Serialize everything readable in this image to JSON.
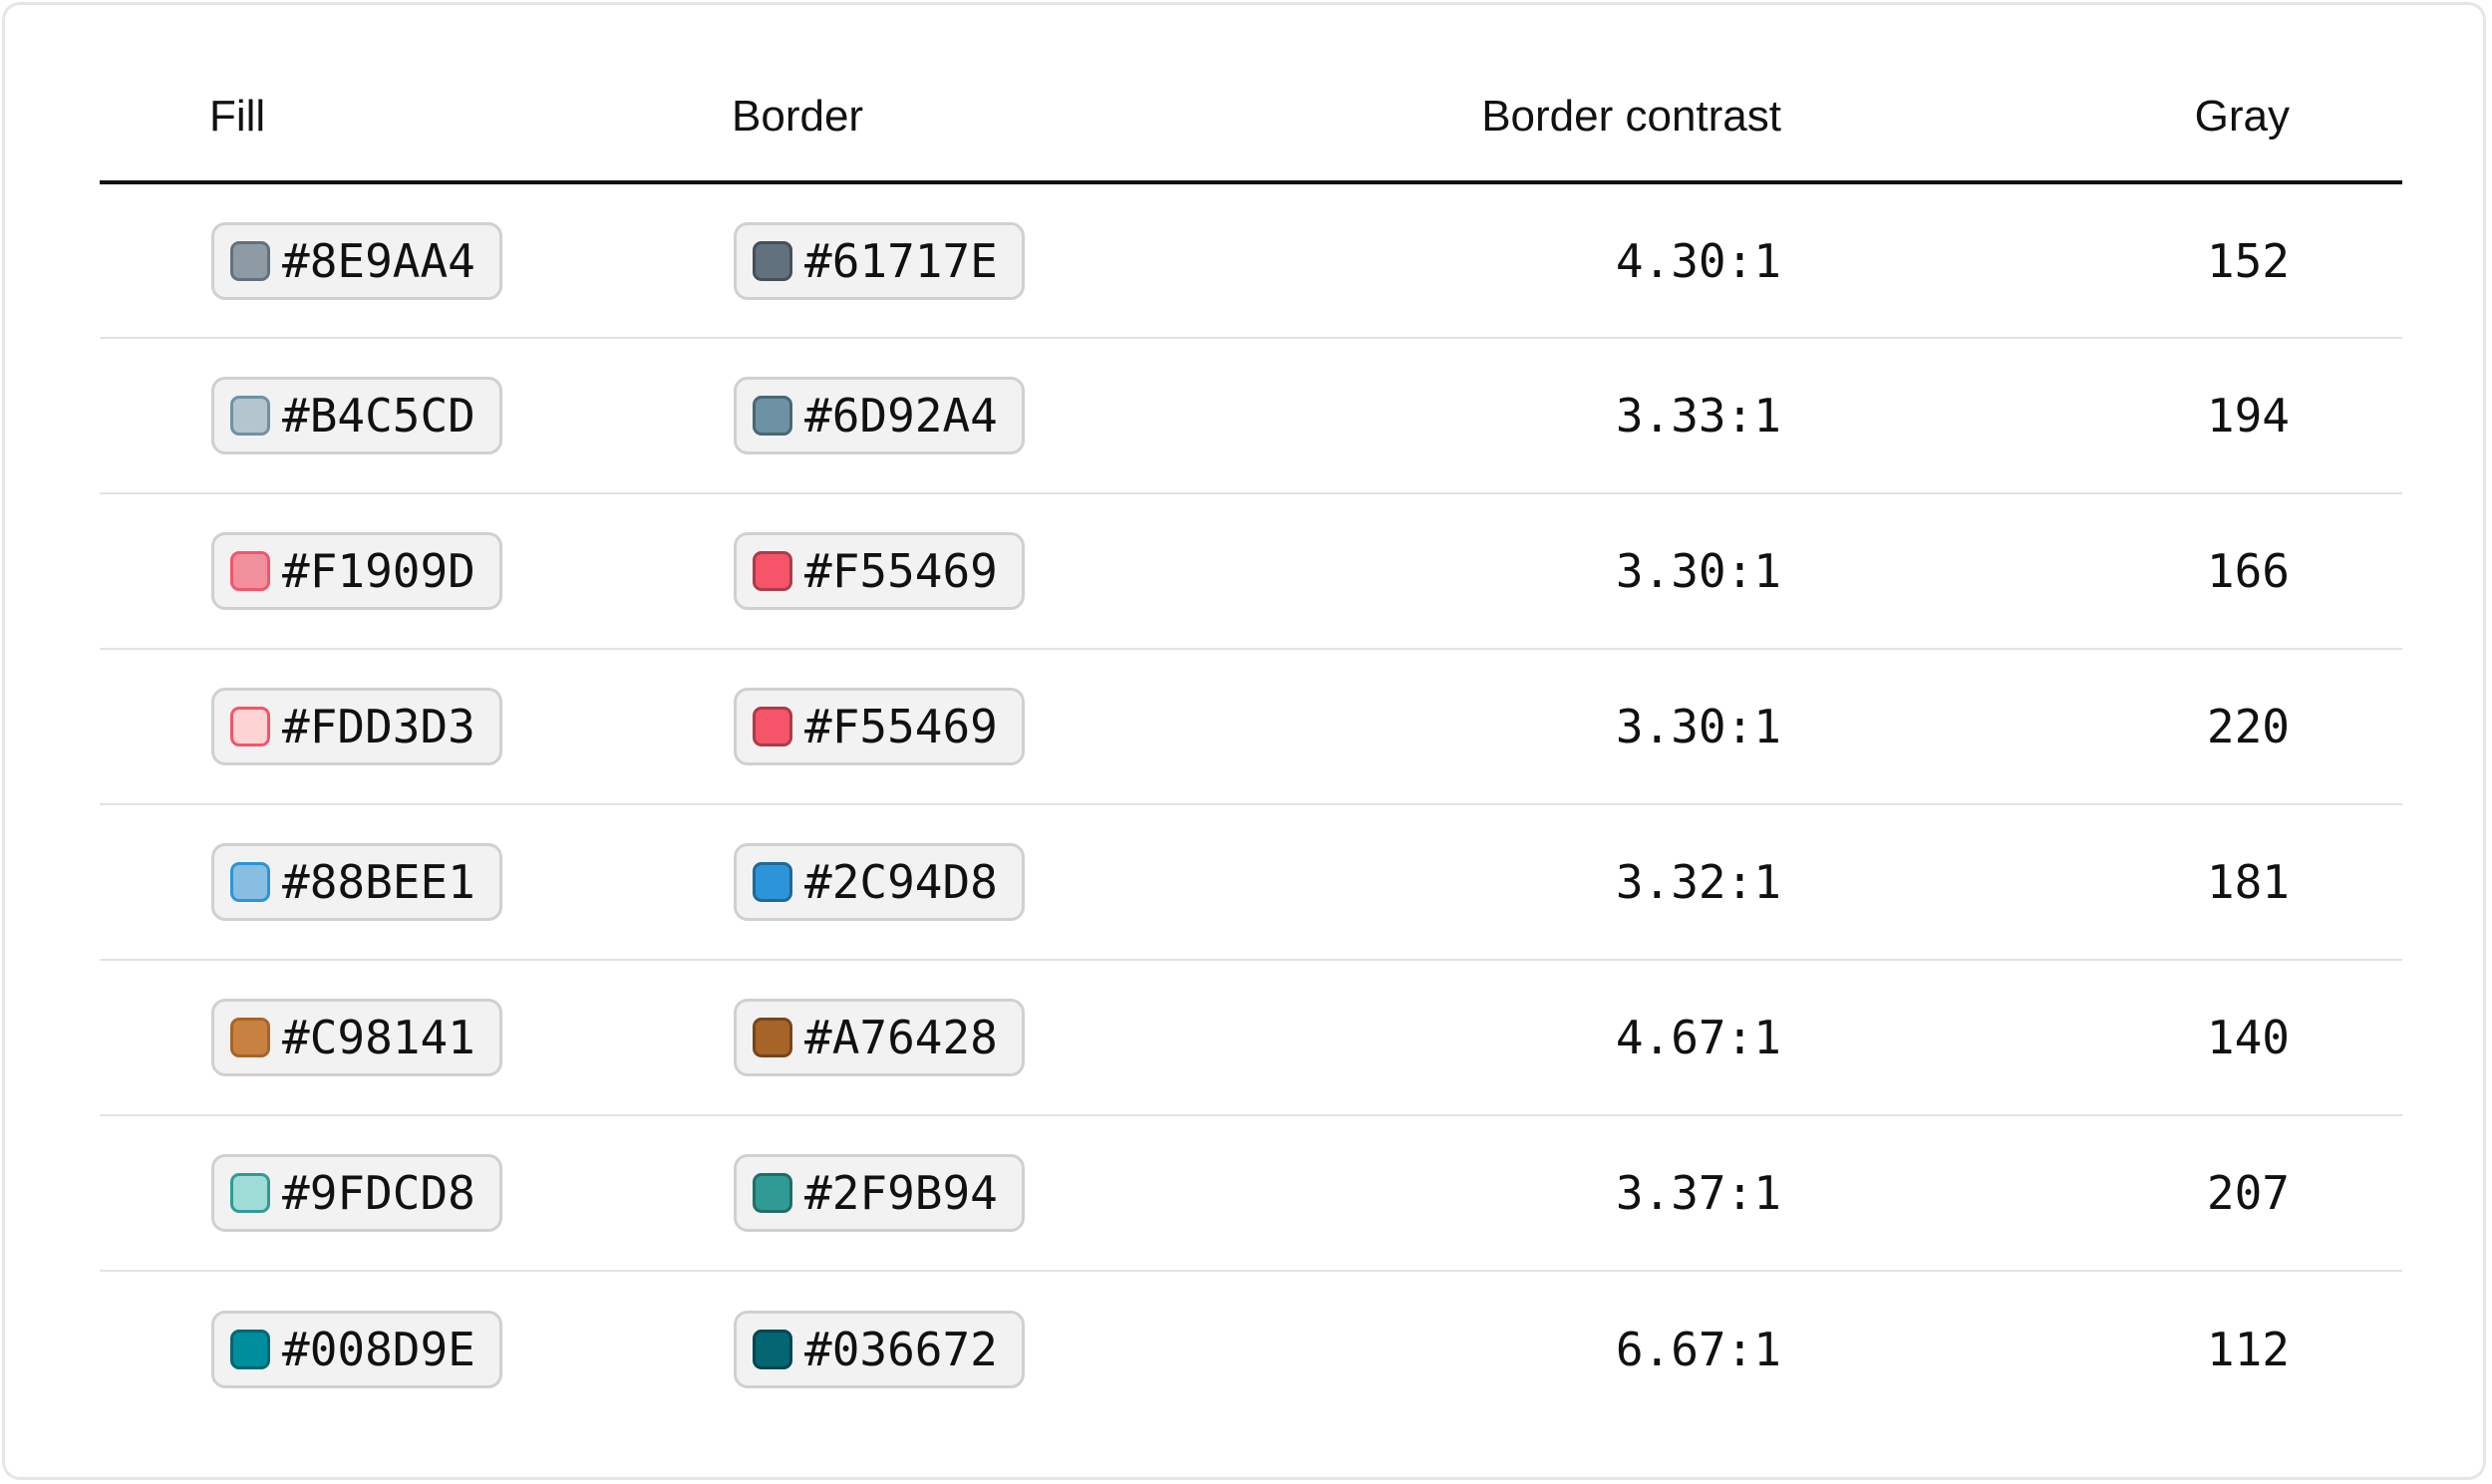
{
  "table": {
    "headers": {
      "fill": "Fill",
      "border": "Border",
      "contrast": "Border contrast",
      "gray": "Gray"
    },
    "rows": [
      {
        "fill": "#8E9AA4",
        "border": "#61717E",
        "contrast": "4.30:1",
        "gray": "152"
      },
      {
        "fill": "#B4C5CD",
        "border": "#6D92A4",
        "contrast": "3.33:1",
        "gray": "194"
      },
      {
        "fill": "#F1909D",
        "border": "#F55469",
        "contrast": "3.30:1",
        "gray": "166"
      },
      {
        "fill": "#FDD3D3",
        "border": "#F55469",
        "contrast": "3.30:1",
        "gray": "220"
      },
      {
        "fill": "#88BEE1",
        "border": "#2C94D8",
        "contrast": "3.32:1",
        "gray": "181"
      },
      {
        "fill": "#C98141",
        "border": "#A76428",
        "contrast": "4.67:1",
        "gray": "140"
      },
      {
        "fill": "#9FDCD8",
        "border": "#2F9B94",
        "contrast": "3.37:1",
        "gray": "207"
      },
      {
        "fill": "#008D9E",
        "border": "#036672",
        "contrast": "6.67:1",
        "gray": "112"
      }
    ]
  }
}
